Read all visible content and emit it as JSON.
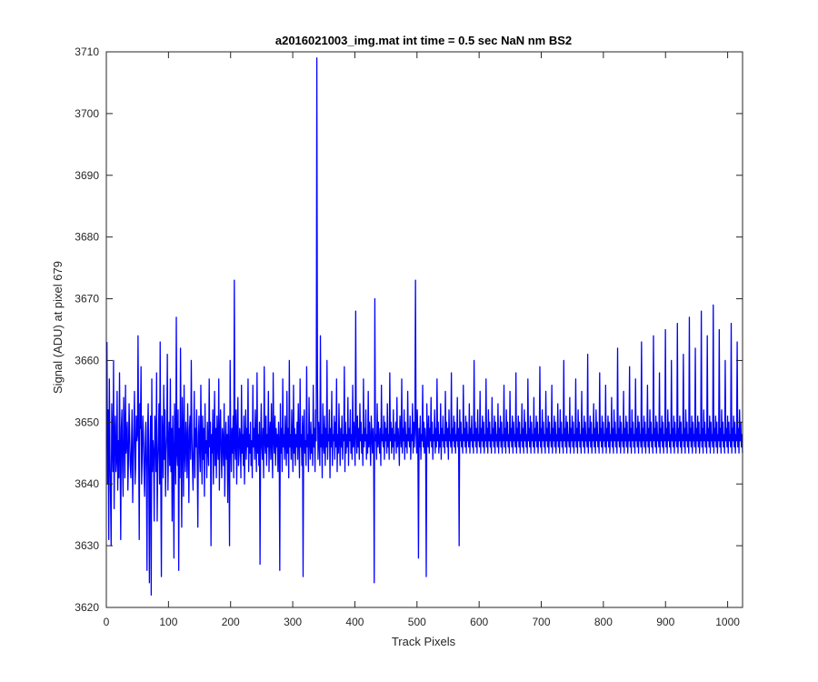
{
  "chart_data": {
    "type": "line",
    "title": "a2016021003_img.mat int time = 0.5 sec  NaN nm BS2",
    "xlabel": "Track Pixels",
    "ylabel": "Signal (ADU) at pixel 679",
    "xlim": [
      0,
      1024
    ],
    "ylim": [
      3620,
      3710
    ],
    "xticks": [
      0,
      100,
      200,
      300,
      400,
      500,
      600,
      700,
      800,
      900,
      1000
    ],
    "yticks": [
      3620,
      3630,
      3640,
      3650,
      3660,
      3670,
      3680,
      3690,
      3700,
      3710
    ],
    "grid": false,
    "legend": "none",
    "series_color": "#0000ff",
    "series": [
      {
        "noise_mean": 3647,
        "noise_sd": 6,
        "x_start": 1,
        "x_end": 1024,
        "values": [
          3663,
          3640,
          3652,
          3631,
          3657,
          3645,
          3638,
          3630,
          3653,
          3647,
          3642,
          3660,
          3636,
          3648,
          3651,
          3642,
          3644,
          3655,
          3639,
          3647,
          3641,
          3658,
          3646,
          3631,
          3649,
          3652,
          3643,
          3638,
          3654,
          3649,
          3641,
          3656,
          3645,
          3647,
          3650,
          3639,
          3644,
          3653,
          3648,
          3643,
          3641,
          3646,
          3652,
          3637,
          3644,
          3649,
          3655,
          3640,
          3643,
          3651,
          3647,
          3648,
          3664,
          3646,
          3631,
          3653,
          3649,
          3659,
          3640,
          3645,
          3651,
          3648,
          3642,
          3638,
          3646,
          3650,
          3642,
          3626,
          3649,
          3653,
          3641,
          3624,
          3646,
          3651,
          3622,
          3657,
          3642,
          3647,
          3645,
          3634,
          3651,
          3649,
          3642,
          3658,
          3634,
          3643,
          3647,
          3653,
          3640,
          3663,
          3641,
          3625,
          3651,
          3648,
          3641,
          3656,
          3644,
          3652,
          3638,
          3645,
          3648,
          3661,
          3639,
          3646,
          3650,
          3643,
          3657,
          3642,
          3649,
          3634,
          3651,
          3645,
          3628,
          3653,
          3647,
          3640,
          3667,
          3645,
          3643,
          3652,
          3626,
          3649,
          3641,
          3662,
          3646,
          3633,
          3654,
          3648,
          3638,
          3656,
          3645,
          3642,
          3650,
          3647,
          3641,
          3653,
          3646,
          3637,
          3649,
          3651,
          3644,
          3660,
          3648,
          3643,
          3639,
          3647,
          3655,
          3641,
          3649,
          3646,
          3652,
          3644,
          3633,
          3648,
          3651,
          3645,
          3642,
          3656,
          3647,
          3640,
          3651,
          3644,
          3649,
          3638,
          3653,
          3645,
          3647,
          3641,
          3650,
          3646,
          3643,
          3657,
          3646,
          3650,
          3630,
          3648,
          3645,
          3652,
          3640,
          3647,
          3655,
          3643,
          3649,
          3641,
          3651,
          3646,
          3644,
          3657,
          3639,
          3648,
          3652,
          3645,
          3641,
          3649,
          3647,
          3643,
          3653,
          3638,
          3646,
          3650,
          3644,
          3648,
          3637,
          3651,
          3645,
          3630,
          3660,
          3647,
          3642,
          3649,
          3645,
          3651,
          3641,
          3673,
          3646,
          3644,
          3652,
          3640,
          3648,
          3654,
          3643,
          3645,
          3649,
          3647,
          3641,
          3656,
          3645,
          3648,
          3643,
          3651,
          3640,
          3647,
          3652,
          3644,
          3649,
          3646,
          3657,
          3642,
          3648,
          3645,
          3650,
          3643,
          3647,
          3641,
          3656,
          3646,
          3649,
          3644,
          3652,
          3647,
          3642,
          3658,
          3645,
          3648,
          3643,
          3650,
          3627,
          3647,
          3653,
          3646,
          3644,
          3649,
          3641,
          3659,
          3647,
          3645,
          3651,
          3643,
          3648,
          3646,
          3655,
          3642,
          3648,
          3650,
          3644,
          3653,
          3646,
          3641,
          3658,
          3647,
          3645,
          3651,
          3643,
          3649,
          3646,
          3648,
          3642,
          3650,
          3647,
          3626,
          3653,
          3645,
          3649,
          3642,
          3657,
          3646,
          3648,
          3644,
          3651,
          3647,
          3643,
          3655,
          3645,
          3649,
          3641,
          3660,
          3646,
          3648,
          3644,
          3652,
          3647,
          3642,
          3656,
          3645,
          3649,
          3643,
          3648,
          3646,
          3650,
          3644,
          3653,
          3647,
          3641,
          3657,
          3646,
          3648,
          3643,
          3651,
          3625,
          3649,
          3652,
          3645,
          3647,
          3643,
          3659,
          3646,
          3648,
          3642,
          3654,
          3647,
          3644,
          3650,
          3645,
          3648,
          3643,
          3656,
          3646,
          3649,
          3642,
          3652,
          3647,
          3709,
          3658,
          3644,
          3650,
          3647,
          3643,
          3664,
          3646,
          3648,
          3641,
          3653,
          3647,
          3645,
          3651,
          3643,
          3649,
          3646,
          3660,
          3644,
          3648,
          3647,
          3652,
          3641,
          3649,
          3646,
          3655,
          3643,
          3648,
          3647,
          3651,
          3644,
          3650,
          3646,
          3657,
          3642,
          3648,
          3645,
          3653,
          3647,
          3643,
          3649,
          3646,
          3651,
          3644,
          3648,
          3647,
          3659,
          3642,
          3650,
          3645,
          3648,
          3646,
          3654,
          3643,
          3649,
          3647,
          3652,
          3645,
          3648,
          3644,
          3656,
          3646,
          3650,
          3647,
          3643,
          3668,
          3648,
          3645,
          3651,
          3646,
          3649,
          3644,
          3653,
          3647,
          3650,
          3645,
          3648,
          3643,
          3657,
          3646,
          3649,
          3647,
          3652,
          3644,
          3648,
          3645,
          3655,
          3646,
          3650,
          3647,
          3643,
          3651,
          3648,
          3645,
          3649,
          3646,
          3624,
          3670,
          3647,
          3648,
          3644,
          3653,
          3646,
          3650,
          3647,
          3645,
          3649,
          3643,
          3656,
          3647,
          3648,
          3646,
          3651,
          3644,
          3650,
          3647,
          3649,
          3645,
          3653,
          3646,
          3648,
          3644,
          3658,
          3647,
          3650,
          3645,
          3649,
          3646,
          3652,
          3644,
          3648,
          3647,
          3650,
          3645,
          3654,
          3646,
          3649,
          3647,
          3643,
          3651,
          3648,
          3646,
          3657,
          3645,
          3649,
          3647,
          3652,
          3644,
          3650,
          3646,
          3648,
          3645,
          3655,
          3647,
          3649,
          3646,
          3651,
          3644,
          3648,
          3647,
          3653,
          3645,
          3650,
          3646,
          3649,
          3673,
          3648,
          3645,
          3652,
          3647,
          3628,
          3649,
          3646,
          3651,
          3644,
          3648,
          3647,
          3656,
          3646,
          3650,
          3645,
          3649,
          3647,
          3625,
          3653,
          3648,
          3646,
          3651,
          3645,
          3649,
          3647,
          3654,
          3646,
          3650,
          3644,
          3648,
          3647,
          3652,
          3645,
          3649,
          3646,
          3657,
          3647,
          3650,
          3645,
          3648,
          3646,
          3653,
          3644,
          3649,
          3647,
          3651,
          3646,
          3648,
          3645,
          3655,
          3647,
          3650,
          3646,
          3649,
          3644,
          3652,
          3647,
          3648,
          3646,
          3658,
          3645,
          3649,
          3647,
          3651,
          3646,
          3650,
          3645,
          3648,
          3647,
          3654,
          3646,
          3649,
          3630,
          3652,
          3647,
          3650,
          3646,
          3648,
          3645,
          3656,
          3647,
          3649,
          3646,
          3651,
          3645,
          3650,
          3647,
          3648,
          3646,
          3653,
          3645,
          3649,
          3647,
          3651,
          3646,
          3648,
          3645,
          3660,
          3647,
          3650,
          3646,
          3649,
          3645,
          3652,
          3647,
          3648,
          3646,
          3655,
          3645,
          3649,
          3647,
          3651,
          3646,
          3650,
          3645,
          3648,
          3647,
          3657,
          3646,
          3649,
          3645,
          3652,
          3647,
          3650,
          3646,
          3648,
          3645,
          3654,
          3647,
          3649,
          3646,
          3651,
          3645,
          3650,
          3647,
          3648,
          3646,
          3653,
          3645,
          3649,
          3647,
          3651,
          3646,
          3650,
          3645,
          3648,
          3647,
          3656,
          3646,
          3649,
          3645,
          3652,
          3647,
          3650,
          3646,
          3648,
          3645,
          3655,
          3647,
          3649,
          3646,
          3651,
          3645,
          3650,
          3647,
          3648,
          3646,
          3658,
          3645,
          3649,
          3647,
          3651,
          3646,
          3650,
          3645,
          3648,
          3647,
          3653,
          3646,
          3649,
          3645,
          3652,
          3647,
          3650,
          3646,
          3648,
          3645,
          3657,
          3647,
          3649,
          3646,
          3651,
          3645,
          3650,
          3647,
          3648,
          3646,
          3654,
          3645,
          3649,
          3647,
          3651,
          3646,
          3650,
          3645,
          3648,
          3647,
          3659,
          3646,
          3649,
          3645,
          3652,
          3647,
          3650,
          3646,
          3648,
          3645,
          3655,
          3647,
          3649,
          3646,
          3651,
          3645,
          3650,
          3647,
          3648,
          3646,
          3656,
          3645,
          3649,
          3647,
          3651,
          3646,
          3650,
          3645,
          3648,
          3647,
          3653,
          3646,
          3649,
          3645,
          3652,
          3647,
          3650,
          3646,
          3648,
          3645,
          3660,
          3647,
          3649,
          3646,
          3651,
          3645,
          3650,
          3647,
          3648,
          3646,
          3654,
          3645,
          3649,
          3647,
          3651,
          3646,
          3650,
          3645,
          3648,
          3647,
          3657,
          3646,
          3649,
          3645,
          3652,
          3647,
          3650,
          3646,
          3648,
          3645,
          3655,
          3647,
          3649,
          3646,
          3651,
          3645,
          3650,
          3647,
          3648,
          3646,
          3661,
          3645,
          3649,
          3647,
          3651,
          3646,
          3650,
          3645,
          3648,
          3647,
          3653,
          3646,
          3649,
          3645,
          3652,
          3647,
          3650,
          3646,
          3648,
          3645,
          3658,
          3647,
          3649,
          3646,
          3651,
          3645,
          3650,
          3647,
          3648,
          3646,
          3656,
          3645,
          3649,
          3647,
          3651,
          3646,
          3650,
          3645,
          3648,
          3647,
          3654,
          3646,
          3649,
          3645,
          3652,
          3647,
          3650,
          3646,
          3648,
          3645,
          3662,
          3647,
          3649,
          3646,
          3651,
          3645,
          3650,
          3647,
          3648,
          3646,
          3655,
          3645,
          3649,
          3647,
          3651,
          3646,
          3650,
          3645,
          3648,
          3647,
          3659,
          3646,
          3649,
          3645,
          3652,
          3647,
          3650,
          3646,
          3648,
          3645,
          3657,
          3647,
          3649,
          3646,
          3651,
          3645,
          3650,
          3647,
          3648,
          3646,
          3663,
          3645,
          3649,
          3647,
          3651,
          3646,
          3650,
          3645,
          3648,
          3647,
          3656,
          3646,
          3649,
          3645,
          3652,
          3647,
          3650,
          3646,
          3648,
          3645,
          3664,
          3647,
          3649,
          3646,
          3651,
          3645,
          3650,
          3647,
          3648,
          3646,
          3658,
          3645,
          3649,
          3647,
          3651,
          3646,
          3650,
          3645,
          3648,
          3647,
          3665,
          3646,
          3649,
          3645,
          3652,
          3647,
          3650,
          3646,
          3648,
          3645,
          3660,
          3647,
          3649,
          3646,
          3651,
          3645,
          3650,
          3647,
          3648,
          3646,
          3666,
          3645,
          3649,
          3647,
          3651,
          3646,
          3650,
          3645,
          3648,
          3647,
          3661,
          3646,
          3649,
          3645,
          3652,
          3647,
          3650,
          3646,
          3648,
          3645,
          3667,
          3647,
          3649,
          3646,
          3651,
          3645,
          3650,
          3647,
          3648,
          3646,
          3662,
          3645,
          3649,
          3647,
          3651,
          3646,
          3650,
          3645,
          3648,
          3647,
          3668,
          3646,
          3649,
          3645,
          3652,
          3647,
          3650,
          3646,
          3648,
          3645,
          3664,
          3647,
          3649,
          3646,
          3651,
          3645,
          3650,
          3647,
          3648,
          3646,
          3669,
          3645,
          3649,
          3647,
          3651,
          3646,
          3650,
          3645,
          3648,
          3647,
          3665,
          3646,
          3649,
          3645,
          3652,
          3647,
          3650,
          3646,
          3648,
          3645,
          3660,
          3647,
          3649,
          3646,
          3651,
          3645,
          3650,
          3647,
          3648,
          3646,
          3666,
          3645,
          3649,
          3647,
          3651,
          3646,
          3650,
          3645,
          3648,
          3647,
          3663,
          3646,
          3649,
          3645,
          3652,
          3647,
          3650,
          3646,
          3648,
          3645
        ]
      }
    ]
  }
}
